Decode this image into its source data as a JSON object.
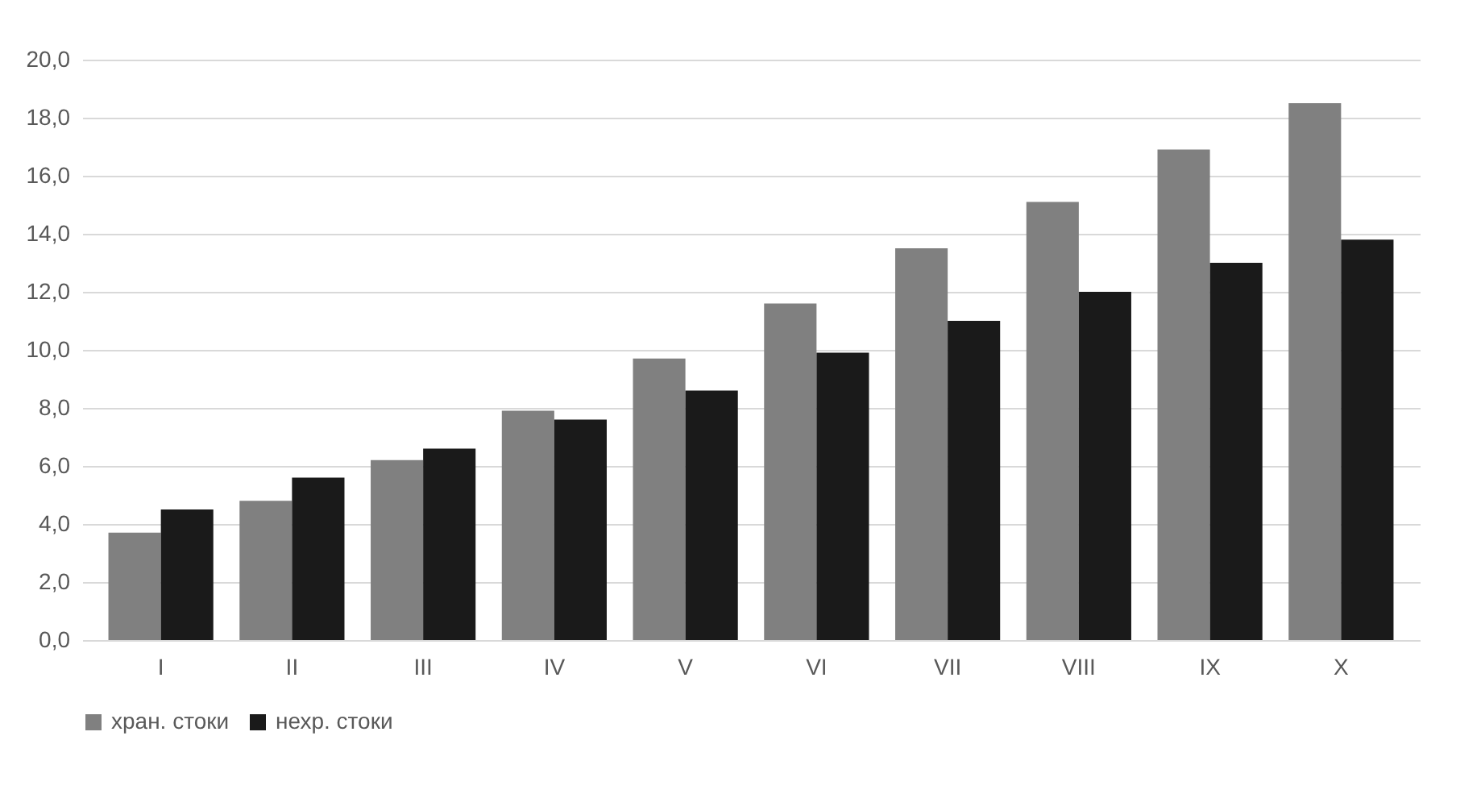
{
  "chart_data": {
    "type": "bar",
    "categories": [
      "I",
      "II",
      "III",
      "IV",
      "V",
      "VI",
      "VII",
      "VIII",
      "IX",
      "X"
    ],
    "series": [
      {
        "name": "хран. стоки",
        "color": "#808080",
        "values": [
          3.7,
          4.8,
          6.2,
          7.9,
          9.7,
          11.6,
          13.5,
          15.1,
          16.9,
          18.5
        ]
      },
      {
        "name": "нехр. стоки",
        "color": "#1a1a1a",
        "values": [
          4.5,
          5.6,
          6.6,
          7.6,
          8.6,
          9.9,
          11.0,
          12.0,
          13.0,
          13.8
        ]
      }
    ],
    "ylim": [
      0,
      20
    ],
    "yticks": [
      {
        "value": 0,
        "label": "0,0"
      },
      {
        "value": 2,
        "label": "2,0"
      },
      {
        "value": 4,
        "label": "4,0"
      },
      {
        "value": 6,
        "label": "6,0"
      },
      {
        "value": 8,
        "label": "8,0"
      },
      {
        "value": 10,
        "label": "10,0"
      },
      {
        "value": 12,
        "label": "12,0"
      },
      {
        "value": 14,
        "label": "14,0"
      },
      {
        "value": 16,
        "label": "16,0"
      },
      {
        "value": 18,
        "label": "18,0"
      },
      {
        "value": 20,
        "label": "20,0"
      }
    ],
    "grid": "y",
    "legend": "bottom"
  }
}
